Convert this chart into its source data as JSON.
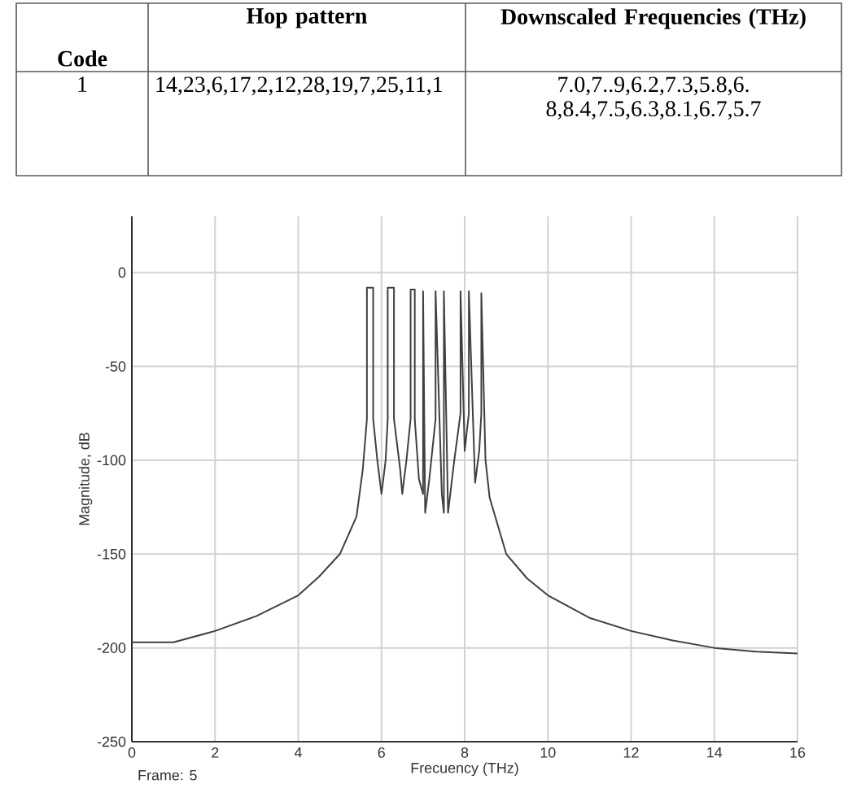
{
  "chart_data": [
    {
      "type": "other",
      "categories": [
        "Code",
        "Hop pattern",
        "Downscaled Frequencies (THz)"
      ],
      "annotations": [
        "1",
        "14,23,6,17,2,12,28,19,7,25,11,1",
        "7.0,7..9,6.2,7.3,5.8,6.8,8.4,7.5,6.3,8.1,6.7,5.7"
      ]
    },
    {
      "type": "line",
      "xlabel": "Frecuency (THz)",
      "ylabel": "Magnitude, dB",
      "annotations": [
        "Frame: 5"
      ],
      "x": [
        0,
        1,
        2,
        3,
        4,
        4.5,
        5,
        5.4,
        5.55,
        5.65,
        5.65,
        5.8,
        5.8,
        5.9,
        6.0,
        6.1,
        6.15,
        6.15,
        6.3,
        6.3,
        6.45,
        6.5,
        6.6,
        6.7,
        6.7,
        6.8,
        6.8,
        6.9,
        7.0,
        7.0,
        7.05,
        7.15,
        7.3,
        7.3,
        7.45,
        7.5,
        7.5,
        7.6,
        7.75,
        7.9,
        7.9,
        8.0,
        8.1,
        8.1,
        8.25,
        8.35,
        8.4,
        8.4,
        8.5,
        8.6,
        9,
        9.5,
        10,
        11,
        12,
        13,
        14,
        15,
        16
      ],
      "series": [
        {
          "color": "#404040",
          "values": [
            -197,
            -197,
            -191,
            -183,
            -172,
            -162,
            -150,
            -130,
            -105,
            -78,
            -8,
            -8,
            -78,
            -100,
            -118,
            -100,
            -78,
            -8,
            -8,
            -78,
            -105,
            -118,
            -100,
            -78,
            -9,
            -9,
            -78,
            -110,
            -118,
            -10,
            -128,
            -110,
            -78,
            -10,
            -118,
            -128,
            -10,
            -128,
            -100,
            -75,
            -10,
            -95,
            -75,
            -10,
            -112,
            -95,
            -75,
            -11,
            -100,
            -120,
            -150,
            -163,
            -172,
            -184,
            -191,
            -196,
            -200,
            -202,
            -203
          ]
        }
      ],
      "xlim": [
        0,
        16
      ],
      "xticks": [
        0,
        2,
        4,
        6,
        8,
        10,
        12,
        14,
        16
      ],
      "ylim": [
        -250,
        30
      ],
      "yticks": [
        -250,
        -200,
        -150,
        -100,
        -50,
        0
      ],
      "grid": true,
      "marker": "none",
      "line_style": "solid"
    }
  ]
}
